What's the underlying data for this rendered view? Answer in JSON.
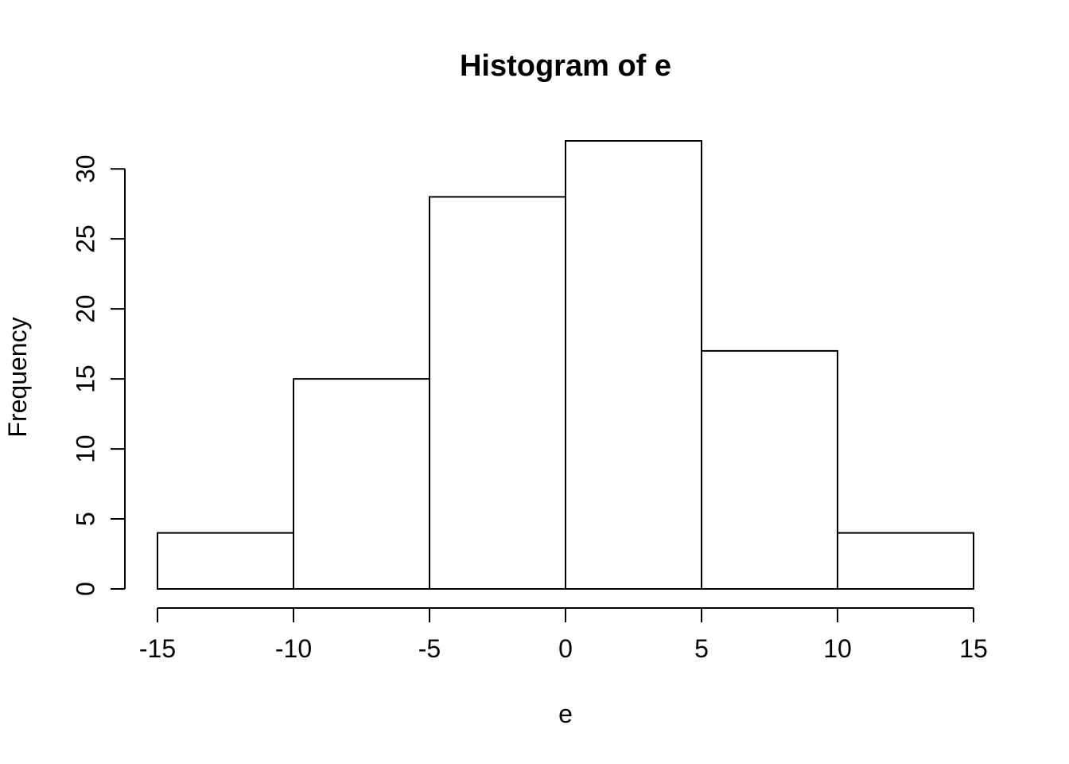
{
  "chart_data": {
    "type": "bar",
    "subtype": "histogram",
    "title": "Histogram of e",
    "xlabel": "e",
    "ylabel": "Frequency",
    "bin_breaks": [
      -15,
      -10,
      -5,
      0,
      5,
      10,
      15
    ],
    "counts": [
      4,
      15,
      28,
      32,
      17,
      4
    ],
    "x_ticks": [
      -15,
      -10,
      -5,
      0,
      5,
      10,
      15
    ],
    "y_ticks": [
      0,
      5,
      10,
      15,
      20,
      25,
      30
    ],
    "xlim": [
      -15,
      15
    ],
    "ylim": [
      0,
      32
    ],
    "grid": false,
    "legend": null,
    "bar_fill": "#ffffff",
    "line_color": "#000000",
    "background": "#ffffff"
  }
}
